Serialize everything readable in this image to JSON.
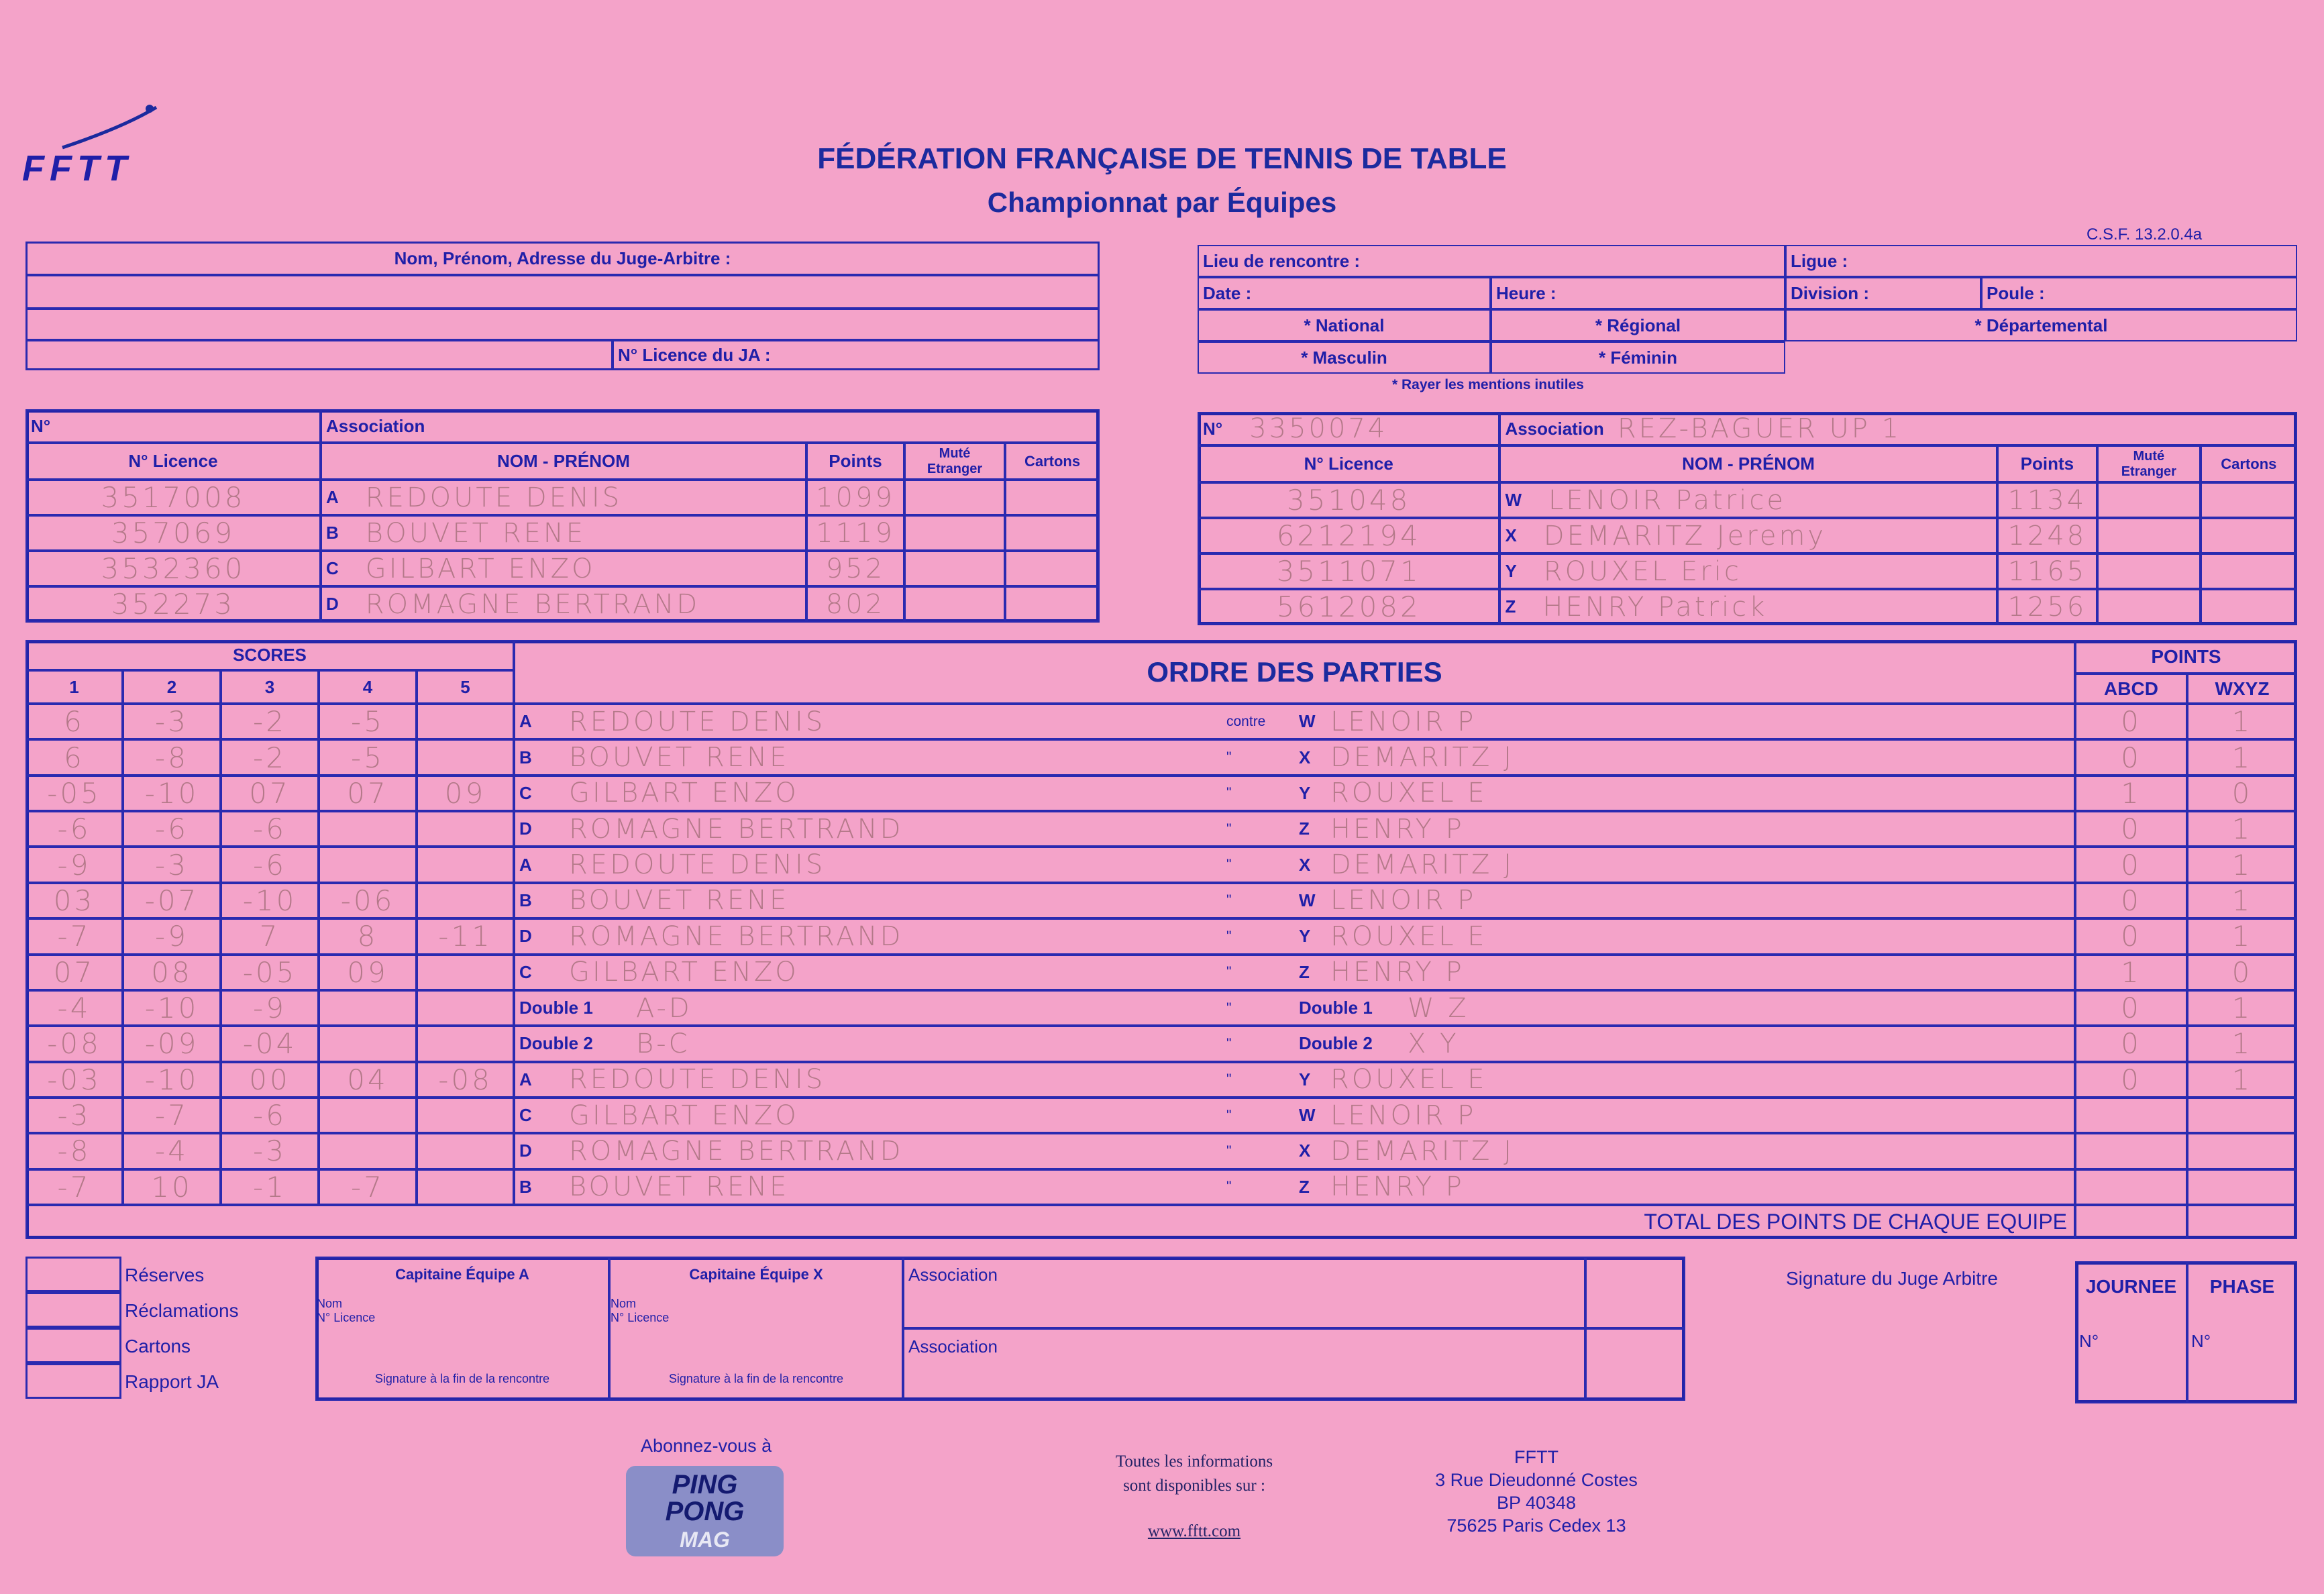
{
  "header": {
    "logo": "FFTT",
    "title": "FÉDÉRATION FRANÇAISE DE TENNIS DE TABLE",
    "subtitle": "Championnat par Équipes",
    "form_code": "C.S.F. 13.2.0.4a"
  },
  "ja": {
    "name_label": "Nom, Prénom, Adresse du Juge-Arbitre :",
    "licence_label": "N° Licence du JA :"
  },
  "info": {
    "lieu": "Lieu de rencontre :",
    "ligue": "Ligue :",
    "date": "Date :",
    "heure": "Heure :",
    "division": "Division :",
    "poule": "Poule :",
    "national": "* National",
    "regional": "* Régional",
    "departemental": "* Départemental",
    "masculin": "* Masculin",
    "feminin": "* Féminin",
    "note": "* Rayer les mentions inutiles"
  },
  "team_headers": {
    "no": "N°",
    "association": "Association",
    "licence": "N° Licence",
    "nom": "NOM - PRÉNOM",
    "points": "Points",
    "mute1": "Muté",
    "mute2": "Etranger",
    "cartons": "Cartons"
  },
  "team_a": {
    "no": "",
    "association": "",
    "players": [
      {
        "letter": "A",
        "licence": "3517008",
        "name": "REDOUTE DENIS",
        "points": "1099"
      },
      {
        "letter": "B",
        "licence": "357069",
        "name": "BOUVET RENE",
        "points": "1119"
      },
      {
        "letter": "C",
        "licence": "3532360",
        "name": "GILBART ENZO",
        "points": "952"
      },
      {
        "letter": "D",
        "licence": "352273",
        "name": "ROMAGNE BERTRAND",
        "points": "802"
      }
    ]
  },
  "team_x": {
    "no": "3350074",
    "association": "REZ-BAGUER UP 1",
    "players": [
      {
        "letter": "W",
        "licence": "351048",
        "name": "LENOIR Patrice",
        "points": "1134"
      },
      {
        "letter": "X",
        "licence": "6212194",
        "name": "DEMARITZ Jeremy",
        "points": "1248"
      },
      {
        "letter": "Y",
        "licence": "3511071",
        "name": "ROUXEL Eric",
        "points": "1165"
      },
      {
        "letter": "Z",
        "licence": "5612082",
        "name": "HENRY Patrick",
        "points": "1256"
      }
    ]
  },
  "grid": {
    "scores_label": "SCORES",
    "set_labels": [
      "1",
      "2",
      "3",
      "4",
      "5"
    ],
    "order_label": "ORDRE DES PARTIES",
    "points_label": "POINTS",
    "abcd": "ABCD",
    "wxyz": "WXYZ",
    "contre": "contre",
    "ditto": "\"",
    "total_label": "TOTAL DES POINTS DE CHAQUE EQUIPE",
    "rows": [
      {
        "sets": [
          "6",
          "-3",
          "-2",
          "-5",
          ""
        ],
        "left_code": "A",
        "left_name": "REDOUTE DENIS",
        "right_code": "W",
        "right_name": "LENOIR P",
        "abcd": "0",
        "wxyz": "1"
      },
      {
        "sets": [
          "6",
          "-8",
          "-2",
          "-5",
          ""
        ],
        "left_code": "B",
        "left_name": "BOUVET RENE",
        "right_code": "X",
        "right_name": "DEMARITZ J",
        "abcd": "0",
        "wxyz": "1"
      },
      {
        "sets": [
          "-05",
          "-10",
          "07",
          "07",
          "09"
        ],
        "left_code": "C",
        "left_name": "GILBART ENZO",
        "right_code": "Y",
        "right_name": "ROUXEL E",
        "abcd": "1",
        "wxyz": "0"
      },
      {
        "sets": [
          "-6",
          "-6",
          "-6",
          "",
          ""
        ],
        "left_code": "D",
        "left_name": "ROMAGNE BERTRAND",
        "right_code": "Z",
        "right_name": "HENRY P",
        "abcd": "0",
        "wxyz": "1"
      },
      {
        "sets": [
          "-9",
          "-3",
          "-6",
          "",
          ""
        ],
        "left_code": "A",
        "left_name": "REDOUTE DENIS",
        "right_code": "X",
        "right_name": "DEMARITZ J",
        "abcd": "0",
        "wxyz": "1"
      },
      {
        "sets": [
          "03",
          "-07",
          "-10",
          "-06",
          ""
        ],
        "left_code": "B",
        "left_name": "BOUVET RENE",
        "right_code": "W",
        "right_name": "LENOIR P",
        "abcd": "0",
        "wxyz": "1"
      },
      {
        "sets": [
          "-7",
          "-9",
          "7",
          "8",
          "-11"
        ],
        "left_code": "D",
        "left_name": "ROMAGNE BERTRAND",
        "right_code": "Y",
        "right_name": "ROUXEL E",
        "abcd": "0",
        "wxyz": "1"
      },
      {
        "sets": [
          "07",
          "08",
          "-05",
          "09",
          ""
        ],
        "left_code": "C",
        "left_name": "GILBART ENZO",
        "right_code": "Z",
        "right_name": "HENRY P",
        "abcd": "1",
        "wxyz": "0"
      },
      {
        "sets": [
          "-4",
          "-10",
          "-9",
          "",
          ""
        ],
        "left_code": "Double 1",
        "left_name": "A-D",
        "right_code": "Double 1",
        "right_name": "W Z",
        "abcd": "0",
        "wxyz": "1"
      },
      {
        "sets": [
          "-08",
          "-09",
          "-04",
          "",
          ""
        ],
        "left_code": "Double 2",
        "left_name": "B-C",
        "right_code": "Double 2",
        "right_name": "X Y",
        "abcd": "0",
        "wxyz": "1"
      },
      {
        "sets": [
          "-03",
          "-10",
          "00",
          "04",
          "-08"
        ],
        "left_code": "A",
        "left_name": "REDOUTE DENIS",
        "right_code": "Y",
        "right_name": "ROUXEL E",
        "abcd": "0",
        "wxyz": "1"
      },
      {
        "sets": [
          "-3",
          "-7",
          "-6",
          "",
          ""
        ],
        "left_code": "C",
        "left_name": "GILBART ENZO",
        "right_code": "W",
        "right_name": "LENOIR P",
        "abcd": "",
        "wxyz": ""
      },
      {
        "sets": [
          "-8",
          "-4",
          "-3",
          "",
          ""
        ],
        "left_code": "D",
        "left_name": "ROMAGNE BERTRAND",
        "right_code": "X",
        "right_name": "DEMARITZ J",
        "abcd": "",
        "wxyz": ""
      },
      {
        "sets": [
          "-7",
          "10",
          "-1",
          "-7",
          ""
        ],
        "left_code": "B",
        "left_name": "BOUVET RENE",
        "right_code": "Z",
        "right_name": "HENRY P",
        "abcd": "",
        "wxyz": ""
      }
    ]
  },
  "bottom": {
    "checks": [
      "Réserves",
      "Réclamations",
      "Cartons",
      "Rapport  JA"
    ],
    "cap_a": "Capitaine Équipe A",
    "cap_x": "Capitaine Équipe X",
    "nom": "Nom",
    "licence": "N° Licence",
    "signature": "Signature à la fin de la rencontre",
    "association": "Association",
    "ja_signature": "Signature  du  Juge  Arbitre",
    "journee": "JOURNEE",
    "phase": "PHASE",
    "no": "N°"
  },
  "footer": {
    "abonnez": "Abonnez-vous à",
    "mag": "PING PONG MAG",
    "info1": "Toutes les informations",
    "info2": "sont disponibles sur :",
    "url": "www.fftt.com",
    "addr": [
      "FFTT",
      "3 Rue Dieudonné Costes",
      "BP 40348",
      "75625 Paris Cedex 13"
    ]
  }
}
